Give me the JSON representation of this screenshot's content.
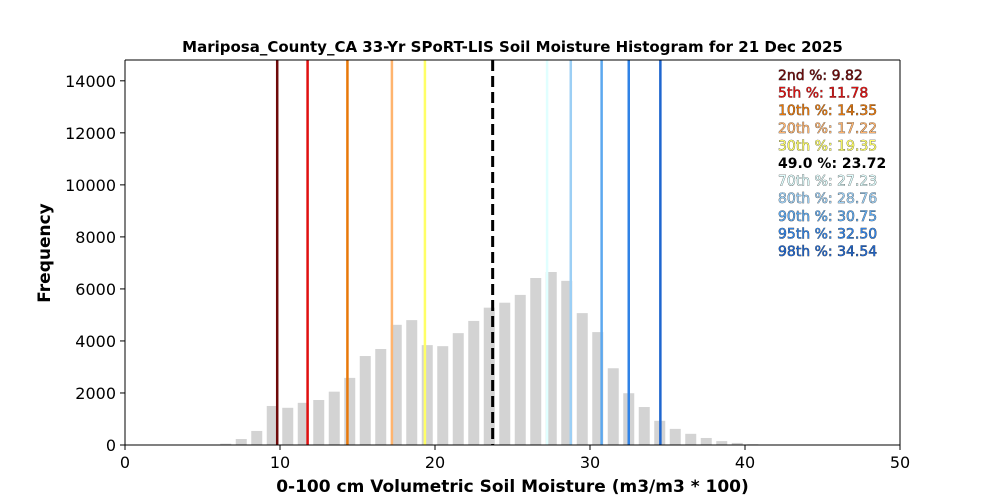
{
  "chart_data": {
    "type": "bar",
    "title": "Mariposa_County_CA 33-Yr SPoRT-LIS Soil Moisture Histogram for 21 Dec 2025",
    "xlabel": "0-100 cm Volumetric Soil Moisture (m3/m3 * 100)",
    "ylabel": "Frequency",
    "xlim": [
      0,
      50
    ],
    "ylim": [
      0,
      14800
    ],
    "xticks": [
      "0",
      "10",
      "20",
      "30",
      "40",
      "50"
    ],
    "xtick_values": [
      0,
      10,
      20,
      30,
      40,
      50
    ],
    "yticks": [
      "0",
      "2000",
      "4000",
      "6000",
      "8000",
      "10000",
      "12000",
      "14000"
    ],
    "ytick_values": [
      0,
      2000,
      4000,
      6000,
      8000,
      10000,
      12000,
      14000
    ],
    "bar_color": "#d3d3d3",
    "bins": [
      6.5,
      7.5,
      8.5,
      9.5,
      10.5,
      11.5,
      12.5,
      13.5,
      14.5,
      15.5,
      16.5,
      17.5,
      18.5,
      19.5,
      20.5,
      21.5,
      22.5,
      23.5,
      24.5,
      25.5,
      26.5,
      27.5,
      28.5,
      29.5,
      30.5,
      31.5,
      32.5,
      33.5,
      34.5,
      35.5,
      36.5,
      37.5,
      38.5,
      39.5,
      40.5
    ],
    "values": [
      50,
      230,
      540,
      1500,
      1430,
      1620,
      1730,
      2050,
      2580,
      3420,
      3690,
      4620,
      4800,
      3840,
      3800,
      4300,
      4770,
      5280,
      5470,
      5770,
      6420,
      6650,
      6310,
      5070,
      4340,
      2950,
      1990,
      1460,
      930,
      620,
      430,
      270,
      150,
      80,
      30
    ],
    "percentiles": [
      {
        "label": "2nd %: 9.82",
        "value": 9.82,
        "color": "#6e0a0a"
      },
      {
        "label": "5th %: 11.78",
        "value": 11.78,
        "color": "#e01010"
      },
      {
        "label": "10th %: 14.35",
        "value": 14.35,
        "color": "#e8780a"
      },
      {
        "label": "20th %: 17.22",
        "value": 17.22,
        "color": "#ffb46e"
      },
      {
        "label": "30th %: 19.35",
        "value": 19.35,
        "color": "#ffff66"
      },
      {
        "label": "49.0 %: 23.72",
        "value": 23.72,
        "color": "#000000",
        "dashed": true
      },
      {
        "label": "70th %: 27.23",
        "value": 27.23,
        "color": "#e0ffff"
      },
      {
        "label": "80th %: 28.76",
        "value": 28.76,
        "color": "#9ccff5"
      },
      {
        "label": "90th %: 30.75",
        "value": 30.75,
        "color": "#5ca8ef"
      },
      {
        "label": "95th %: 32.50",
        "value": 32.5,
        "color": "#2f82e6"
      },
      {
        "label": "98th %: 34.54",
        "value": 34.54,
        "color": "#1e66cf"
      }
    ],
    "legend_position": "top-right",
    "grid": false
  }
}
